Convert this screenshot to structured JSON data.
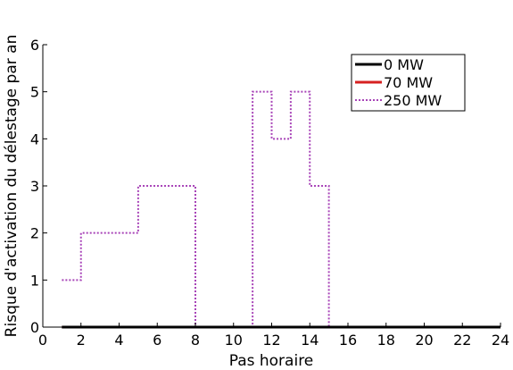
{
  "chart_data": {
    "type": "line",
    "title": "",
    "xlabel": "Pas horaire",
    "ylabel": "Risque d'activation du délestage par an",
    "xlim": [
      0,
      24
    ],
    "ylim": [
      0,
      6
    ],
    "x_ticks": [
      0,
      2,
      4,
      6,
      8,
      10,
      12,
      14,
      16,
      18,
      20,
      22,
      24
    ],
    "y_ticks": [
      0,
      1,
      2,
      3,
      4,
      5,
      6
    ],
    "grid": false,
    "step": "post",
    "legend": {
      "position": "top-right"
    },
    "x": [
      1,
      2,
      3,
      4,
      5,
      6,
      7,
      8,
      9,
      10,
      11,
      12,
      13,
      14,
      15,
      16,
      17,
      18,
      19,
      20,
      21,
      22,
      23,
      24
    ],
    "series": [
      {
        "name": "0 MW",
        "color": "#000000",
        "style": "solid",
        "values": [
          0,
          0,
          0,
          0,
          0,
          0,
          0,
          0,
          0,
          0,
          0,
          0,
          0,
          0,
          0,
          0,
          0,
          0,
          0,
          0,
          0,
          0,
          0,
          0
        ]
      },
      {
        "name": "70 MW",
        "color": "#d62020",
        "style": "solid",
        "values": [
          0,
          0,
          0,
          0,
          0,
          0,
          0,
          0,
          0,
          0,
          0,
          0,
          0,
          0,
          0,
          0,
          0,
          0,
          0,
          0,
          0,
          0,
          0,
          0
        ]
      },
      {
        "name": "250 MW",
        "color": "#a844b8",
        "style": "dotted",
        "values": [
          1,
          2,
          2,
          2,
          3,
          3,
          3,
          0,
          0,
          0,
          5,
          4,
          5,
          3,
          0,
          0,
          0,
          0,
          0,
          0,
          0,
          0,
          0,
          0
        ]
      }
    ]
  }
}
